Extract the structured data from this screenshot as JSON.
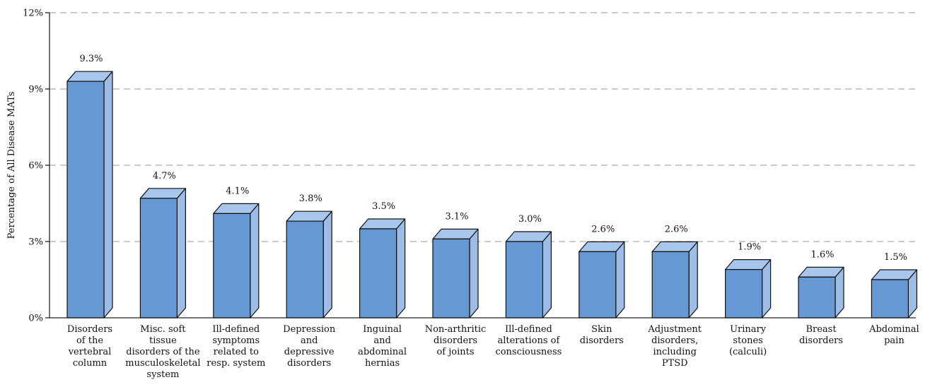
{
  "chart_data": {
    "type": "bar",
    "title": "",
    "xlabel": "",
    "ylabel": "Percentage of All Disease MATs",
    "ylim": [
      0,
      12
    ],
    "yticks": [
      0,
      3,
      6,
      9,
      12
    ],
    "ytick_labels": [
      "0%",
      "3%",
      "6%",
      "9%",
      "12%"
    ],
    "grid": true,
    "style": "3d-bar",
    "categories": [
      [
        "Disorders",
        "of the",
        "vertebral",
        "column"
      ],
      [
        "Misc. soft",
        "tissue",
        "disorders of the",
        "musculoskeletal",
        "system"
      ],
      [
        "Ill-defined",
        "symptoms",
        "related to",
        "resp. system"
      ],
      [
        "Depression",
        "and",
        "depressive",
        "disorders"
      ],
      [
        "Inguinal",
        "and",
        "abdominal",
        "hernias"
      ],
      [
        "Non-arthritic",
        "disorders",
        "of joints"
      ],
      [
        "Ill-defined",
        "alterations of",
        "consciousness"
      ],
      [
        "Skin",
        "disorders"
      ],
      [
        "Adjustment",
        "disorders,",
        "including",
        "PTSD"
      ],
      [
        "Urinary",
        "stones",
        "(calculi)"
      ],
      [
        "Breast",
        "disorders"
      ],
      [
        "Abdominal",
        "pain"
      ]
    ],
    "values": [
      9.3,
      4.7,
      4.1,
      3.8,
      3.5,
      3.1,
      3.0,
      2.6,
      2.6,
      1.9,
      1.6,
      1.5
    ],
    "data_labels": [
      "9.3%",
      "4.7%",
      "4.1%",
      "3.8%",
      "3.5%",
      "3.1%",
      "3.0%",
      "2.6%",
      "2.6%",
      "1.9%",
      "1.6%",
      "1.5%"
    ],
    "colors": {
      "bar_front": "#6699d3",
      "bar_top": "#a8c6ec",
      "bar_side": "#9dbce6",
      "outline": "#111111"
    }
  }
}
